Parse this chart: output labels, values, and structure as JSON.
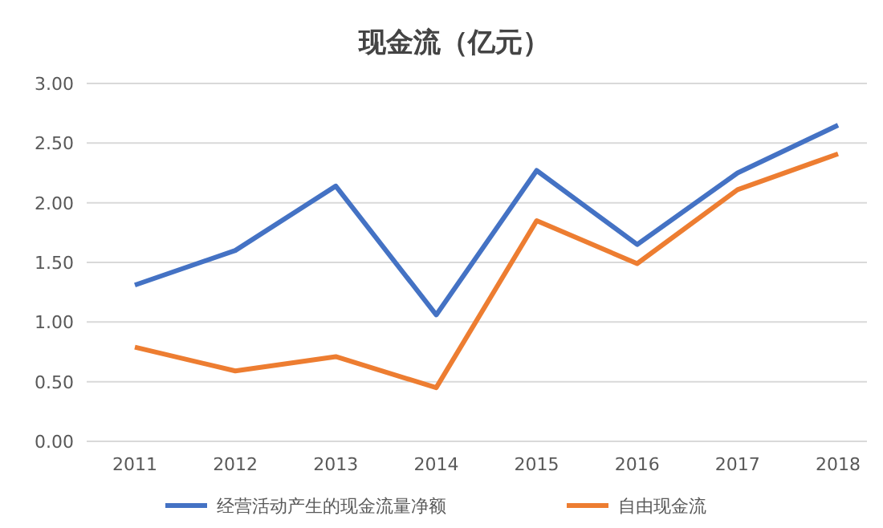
{
  "chart_data": {
    "type": "line",
    "title": "现金流（亿元）",
    "categories": [
      "2011",
      "2012",
      "2013",
      "2014",
      "2015",
      "2016",
      "2017",
      "2018"
    ],
    "series": [
      {
        "name": "经营活动产生的现金流量净额",
        "color": "#4472c4",
        "values": [
          1.31,
          1.6,
          2.14,
          1.06,
          2.27,
          1.65,
          2.25,
          2.65
        ]
      },
      {
        "name": "自由现金流",
        "color": "#ed7d31",
        "values": [
          0.79,
          0.59,
          0.71,
          0.45,
          1.85,
          1.49,
          2.11,
          2.41
        ]
      }
    ],
    "ylim": [
      0,
      3
    ],
    "yticks": [
      {
        "value": 0,
        "label": "0.00"
      },
      {
        "value": 0.5,
        "label": "0.50"
      },
      {
        "value": 1,
        "label": "1.00"
      },
      {
        "value": 1.5,
        "label": "1.50"
      },
      {
        "value": 2,
        "label": "2.00"
      },
      {
        "value": 2.5,
        "label": "2.50"
      },
      {
        "value": 3,
        "label": "3.00"
      }
    ],
    "grid": "y",
    "legend": "bottom",
    "marker": "none",
    "line_style": "solid"
  }
}
